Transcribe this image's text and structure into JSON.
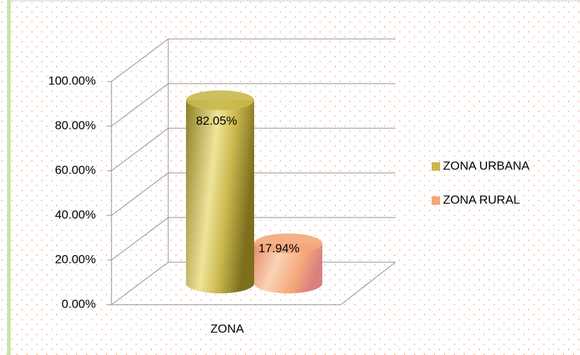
{
  "chart_data": {
    "type": "bar3d",
    "categories": [
      "ZONA"
    ],
    "series": [
      {
        "name": "ZONA URBANA",
        "color": "#c9b84c",
        "values": [
          82.05
        ],
        "value_labels": [
          "82.05%"
        ]
      },
      {
        "name": "ZONA RURAL",
        "color": "#f4a77a",
        "values": [
          17.94
        ],
        "value_labels": [
          "17.94%"
        ]
      }
    ],
    "ylim": [
      0,
      100
    ],
    "yticks": [
      {
        "value": 0,
        "label": "0.00%"
      },
      {
        "value": 20,
        "label": "20.00%"
      },
      {
        "value": 40,
        "label": "40.00%"
      },
      {
        "value": 60,
        "label": "60.00%"
      },
      {
        "value": 80,
        "label": "80.00%"
      },
      {
        "value": 100,
        "label": "100.00%"
      }
    ],
    "grid": true,
    "legend": "right"
  }
}
